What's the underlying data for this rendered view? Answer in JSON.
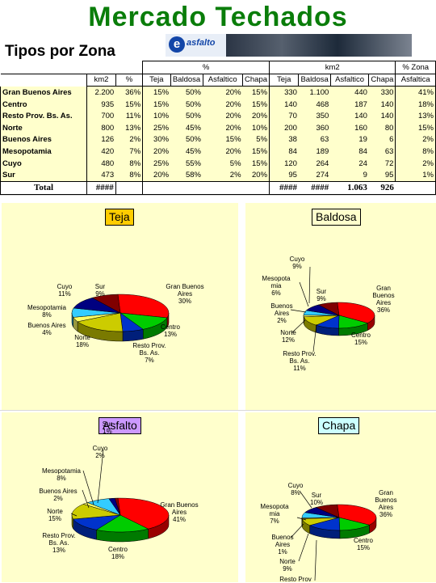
{
  "header": {
    "title": "Mercado Techados",
    "subtitle": "Tipos por Zona",
    "logo_text": "asfalto"
  },
  "table": {
    "group_percent": "%",
    "group_km2": "km2",
    "group_pct_zona": "% Zona",
    "columns": [
      "km2",
      "%",
      "Teja",
      "Baldosa",
      "Asfaltico",
      "Chapa",
      "Teja",
      "Baldosa",
      "Asfaltico",
      "Chapa",
      "Asfaltica"
    ],
    "rows": [
      {
        "zone": "Gran Buenos Aires",
        "km2": "2.200",
        "pct": "36%",
        "teja": "15%",
        "baldosa": "50%",
        "asfaltico": "20%",
        "chapa": "15%",
        "k_teja": "330",
        "k_baldosa": "1.100",
        "k_asfaltico": "440",
        "k_chapa": "330",
        "zona": "41%"
      },
      {
        "zone": "Centro",
        "km2": "935",
        "pct": "15%",
        "teja": "15%",
        "baldosa": "50%",
        "asfaltico": "20%",
        "chapa": "15%",
        "k_teja": "140",
        "k_baldosa": "468",
        "k_asfaltico": "187",
        "k_chapa": "140",
        "zona": "18%"
      },
      {
        "zone": "Resto Prov. Bs. As.",
        "km2": "700",
        "pct": "11%",
        "teja": "10%",
        "baldosa": "50%",
        "asfaltico": "20%",
        "chapa": "20%",
        "k_teja": "70",
        "k_baldosa": "350",
        "k_asfaltico": "140",
        "k_chapa": "140",
        "zona": "13%"
      },
      {
        "zone": "Norte",
        "km2": "800",
        "pct": "13%",
        "teja": "25%",
        "baldosa": "45%",
        "asfaltico": "20%",
        "chapa": "10%",
        "k_teja": "200",
        "k_baldosa": "360",
        "k_asfaltico": "160",
        "k_chapa": "80",
        "zona": "15%"
      },
      {
        "zone": "Buenos Aires",
        "km2": "126",
        "pct": "2%",
        "teja": "30%",
        "baldosa": "50%",
        "asfaltico": "15%",
        "chapa": "5%",
        "k_teja": "38",
        "k_baldosa": "63",
        "k_asfaltico": "19",
        "k_chapa": "6",
        "zona": "2%"
      },
      {
        "zone": "Mesopotamia",
        "km2": "420",
        "pct": "7%",
        "teja": "20%",
        "baldosa": "45%",
        "asfaltico": "20%",
        "chapa": "15%",
        "k_teja": "84",
        "k_baldosa": "189",
        "k_asfaltico": "84",
        "k_chapa": "63",
        "zona": "8%"
      },
      {
        "zone": "Cuyo",
        "km2": "480",
        "pct": "8%",
        "teja": "25%",
        "baldosa": "55%",
        "asfaltico": "5%",
        "chapa": "15%",
        "k_teja": "120",
        "k_baldosa": "264",
        "k_asfaltico": "24",
        "k_chapa": "72",
        "zona": "2%"
      },
      {
        "zone": "Sur",
        "km2": "473",
        "pct": "8%",
        "teja": "20%",
        "baldosa": "58%",
        "asfaltico": "2%",
        "chapa": "20%",
        "k_teja": "95",
        "k_baldosa": "274",
        "k_asfaltico": "9",
        "k_chapa": "95",
        "zona": "1%"
      }
    ],
    "total": {
      "label": "Total",
      "km2": "####",
      "k_teja": "####",
      "k_baldosa": "####",
      "k_asfaltico": "1.063",
      "k_chapa": "926"
    }
  },
  "colors": {
    "title_green": "#0a7d0a",
    "panel_bg": "#ffffcc",
    "slice_colors": [
      "#ff0000",
      "#00cc00",
      "#0033cc",
      "#cccc00",
      "#ffff66",
      "#33ccff",
      "#000080",
      "#800000"
    ]
  },
  "chart_data": [
    {
      "type": "pie",
      "title": "Teja",
      "title_bg": "#ffcc00",
      "categories": [
        "Gran Buenos Aires",
        "Centro",
        "Resto Prov. Bs. As.",
        "Norte",
        "Buenos Aires",
        "Mesopotamia",
        "Cuyo",
        "Sur"
      ],
      "values": [
        30,
        13,
        7,
        18,
        4,
        8,
        11,
        9
      ],
      "labels": [
        {
          "name": "Gran Buenos\nAires",
          "value": "30%"
        },
        {
          "name": "Centro",
          "value": "13%"
        },
        {
          "name": "Resto Prov.\nBs. As.",
          "value": "7%"
        },
        {
          "name": "Norte",
          "value": "18%"
        },
        {
          "name": "Buenos Aires",
          "value": "4%"
        },
        {
          "name": "Mesopotamia",
          "value": "8%"
        },
        {
          "name": "Cuyo",
          "value": "11%"
        },
        {
          "name": "Sur",
          "value": "9%"
        }
      ]
    },
    {
      "type": "pie",
      "title": "Baldosa",
      "title_bg": "#ffffcc",
      "categories": [
        "Gran Buenos Aires",
        "Centro",
        "Resto Prov. Bs. As.",
        "Norte",
        "Buenos Aires",
        "Mesopotamia",
        "Cuyo",
        "Sur"
      ],
      "values": [
        36,
        15,
        11,
        12,
        2,
        6,
        9,
        9
      ],
      "labels": [
        {
          "name": "Gran\nBuenos\nAires",
          "value": "36%"
        },
        {
          "name": "Centro",
          "value": "15%"
        },
        {
          "name": "Resto Prov.\nBs. As.",
          "value": "11%"
        },
        {
          "name": "Norte",
          "value": "12%"
        },
        {
          "name": "Buenos\nAires",
          "value": "2%"
        },
        {
          "name": "Mesopota\nmia",
          "value": "6%"
        },
        {
          "name": "Cuyo",
          "value": "9%"
        },
        {
          "name": "Sur",
          "value": "9%"
        }
      ]
    },
    {
      "type": "pie",
      "title": "Asfalto",
      "title_bg": "#cc99ff",
      "categories": [
        "Gran Buenos Aires",
        "Centro",
        "Resto Prov. Bs. As.",
        "Norte",
        "Buenos Aires",
        "Mesopotamia",
        "Cuyo",
        "Sur"
      ],
      "values": [
        41,
        18,
        13,
        15,
        2,
        8,
        2,
        1
      ],
      "labels": [
        {
          "name": "Gran Buenos\nAires",
          "value": "41%"
        },
        {
          "name": "Centro",
          "value": "18%"
        },
        {
          "name": "Resto Prov.\nBs. As.",
          "value": "13%"
        },
        {
          "name": "Norte",
          "value": "15%"
        },
        {
          "name": "Buenos Aires",
          "value": "2%"
        },
        {
          "name": "Mesopotamia",
          "value": "8%"
        },
        {
          "name": "Cuyo",
          "value": "2%"
        },
        {
          "name": "Sur",
          "value": "1%"
        }
      ]
    },
    {
      "type": "pie",
      "title": "Chapa",
      "title_bg": "#ccffff",
      "categories": [
        "Gran Buenos Aires",
        "Centro",
        "Resto Prov. Bs. As.",
        "Norte",
        "Buenos Aires",
        "Mesopotamia",
        "Cuyo",
        "Sur"
      ],
      "values": [
        36,
        15,
        15,
        9,
        1,
        7,
        8,
        10
      ],
      "labels": [
        {
          "name": "Gran\nBuenos\nAires",
          "value": "36%"
        },
        {
          "name": "Centro",
          "value": "15%"
        },
        {
          "name": "Resto Prov",
          "value": ""
        },
        {
          "name": "Norte",
          "value": "9%"
        },
        {
          "name": "Buenos\nAires",
          "value": "1%"
        },
        {
          "name": "Mesopota\nmia",
          "value": "7%"
        },
        {
          "name": "Cuyo",
          "value": "8%"
        },
        {
          "name": "Sur",
          "value": "10%"
        }
      ]
    }
  ]
}
